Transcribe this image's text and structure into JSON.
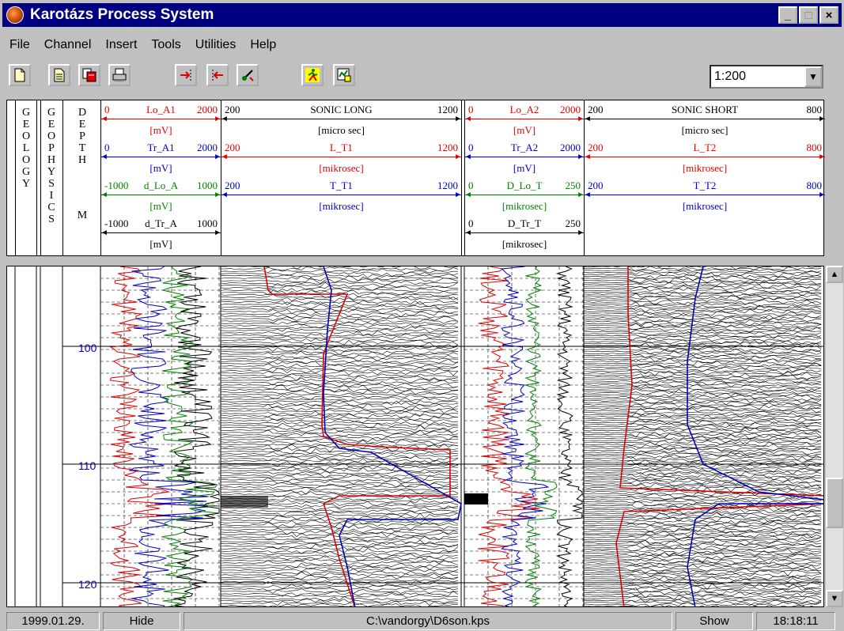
{
  "window": {
    "title": "Karotázs Process System",
    "buttons": [
      "_",
      "□",
      "×"
    ]
  },
  "menu": [
    "File",
    "Channel",
    "Insert",
    "Tools",
    "Utilities",
    "Help"
  ],
  "toolbar": {
    "icons": [
      "new-file-icon",
      "open-file-icon",
      "save-file-icon",
      "print-icon",
      "add-channel-icon",
      "remove-channel-icon",
      "edit-icon",
      "run-icon",
      "view-icon"
    ],
    "scale_value": "1:200"
  },
  "header": {
    "geology": "G\nE\nO\nL\nO\nG\nY",
    "geophysics": "G\nE\nO\nP\nH\nY\nS\nI\nC\nS",
    "depth": "D\nE\nP\nT\nH",
    "depth_unit": "M",
    "track1": [
      {
        "min": "0",
        "name": "Lo_A1",
        "max": "2000",
        "unit": "[mV]",
        "color": "#e00000"
      },
      {
        "min": "0",
        "name": "Tr_A1",
        "max": "2000",
        "unit": "[mV]",
        "color": "#0000c0"
      },
      {
        "min": "-1000",
        "name": "d_Lo_A",
        "max": "1000",
        "unit": "[mV]",
        "color": "#008000"
      },
      {
        "min": "-1000",
        "name": "d_Tr_A",
        "max": "1000",
        "unit": "[mV]",
        "color": "#000000"
      }
    ],
    "track2": [
      {
        "min": "200",
        "name": "SONIC LONG",
        "max": "1200",
        "unit": "[micro sec]",
        "color": "#000000"
      },
      {
        "min": "200",
        "name": "L_T1",
        "max": "1200",
        "unit": "[mikrosec]",
        "color": "#e00000"
      },
      {
        "min": "200",
        "name": "T_T1",
        "max": "1200",
        "unit": "[mikrosec]",
        "color": "#0000c0"
      }
    ],
    "track3": [
      {
        "min": "0",
        "name": "Lo_A2",
        "max": "2000",
        "unit": "[mV]",
        "color": "#e00000"
      },
      {
        "min": "0",
        "name": "Tr_A2",
        "max": "2000",
        "unit": "[mV]",
        "color": "#0000c0"
      },
      {
        "min": "0",
        "name": "D_Lo_T",
        "max": "250",
        "unit": "[mikrosec]",
        "color": "#008000"
      },
      {
        "min": "0",
        "name": "D_Tr_T",
        "max": "250",
        "unit": "[mikrosec]",
        "color": "#000000"
      }
    ],
    "track4": [
      {
        "min": "200",
        "name": "SONIC SHORT",
        "max": "800",
        "unit": "[micro sec]",
        "color": "#000000"
      },
      {
        "min": "200",
        "name": "L_T2",
        "max": "800",
        "unit": "[mikrosec]",
        "color": "#e00000"
      },
      {
        "min": "200",
        "name": "T_T2",
        "max": "800",
        "unit": "[mikrosec]",
        "color": "#0000c0"
      }
    ]
  },
  "plot": {
    "depth_labels": [
      "100",
      "110",
      "120"
    ]
  },
  "status": {
    "date": "1999.01.29.",
    "hide": "Hide",
    "file": "C:\\vandorgy\\D6son.kps",
    "show": "Show",
    "time": "18:18:11"
  }
}
